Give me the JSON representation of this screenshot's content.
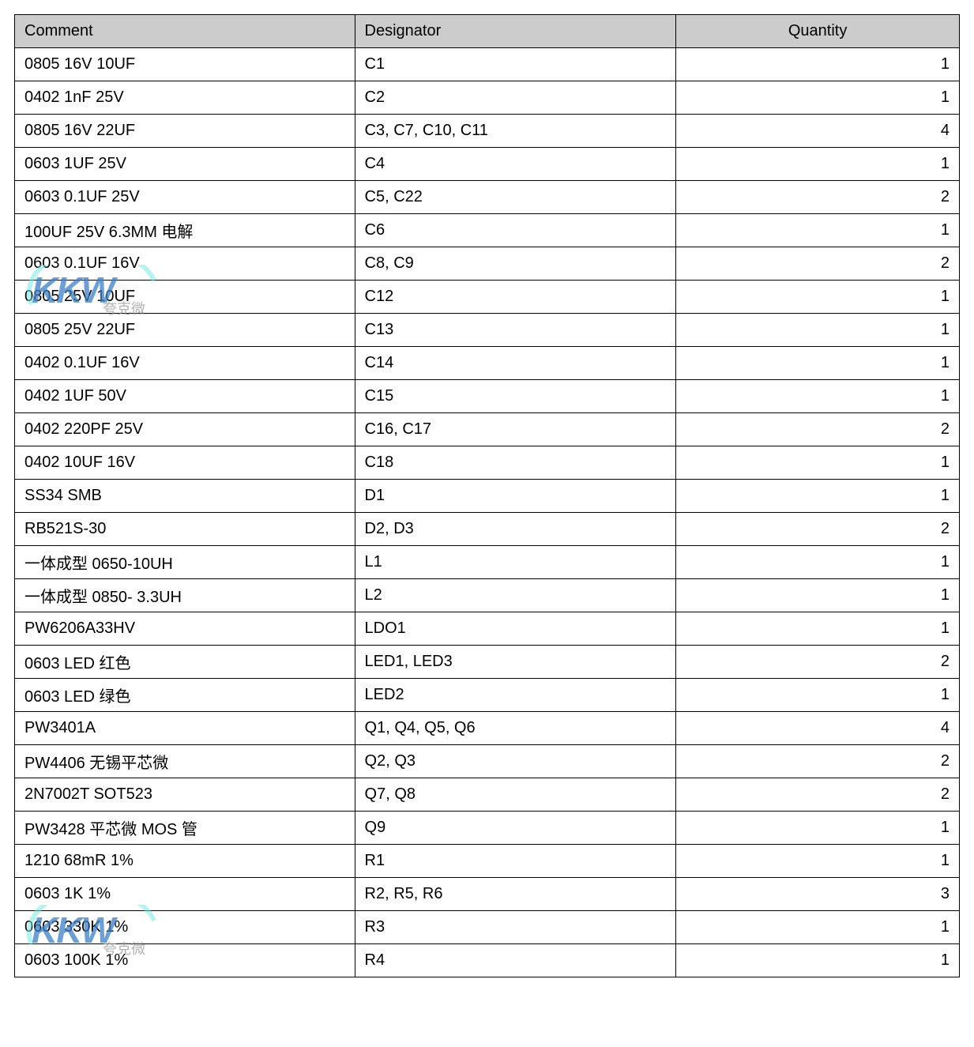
{
  "table": {
    "columns": [
      "Comment",
      "Designator",
      "Quantity"
    ],
    "header_bg": "#cccccc",
    "border_color": "#000000",
    "font_size": 20,
    "rows": [
      {
        "comment": "0805 16V   10UF",
        "designator": "C1",
        "quantity": "1"
      },
      {
        "comment": "0402 1nF   25V",
        "designator": "C2",
        "quantity": "1"
      },
      {
        "comment": "0805 16V   22UF",
        "designator": "C3, C7, C10, C11",
        "quantity": "4"
      },
      {
        "comment": "0603 1UF   25V",
        "designator": "C4",
        "quantity": "1"
      },
      {
        "comment": "0603 0.1UF   25V",
        "designator": "C5, C22",
        "quantity": "2"
      },
      {
        "comment": "100UF 25V   6.3MM 电解",
        "designator": "C6",
        "quantity": "1"
      },
      {
        "comment": "0603 0.1UF   16V",
        "designator": "C8, C9",
        "quantity": "2"
      },
      {
        "comment": "0805 25V   10UF",
        "designator": "C12",
        "quantity": "1"
      },
      {
        "comment": "0805 25V   22UF",
        "designator": "C13",
        "quantity": "1"
      },
      {
        "comment": "0402 0.1UF   16V",
        "designator": "C14",
        "quantity": "1"
      },
      {
        "comment": "0402 1UF   50V",
        "designator": "C15",
        "quantity": "1"
      },
      {
        "comment": "0402 220PF 25V",
        "designator": "C16, C17",
        "quantity": "2"
      },
      {
        "comment": "0402 10UF   16V",
        "designator": "C18",
        "quantity": "1"
      },
      {
        "comment": "SS34   SMB",
        "designator": "D1",
        "quantity": "1"
      },
      {
        "comment": "RB521S-30",
        "designator": "D2, D3",
        "quantity": "2"
      },
      {
        "comment": "一体成型 0650-10UH",
        "designator": "L1",
        "quantity": "1"
      },
      {
        "comment": "一体成型 0850- 3.3UH",
        "designator": "L2",
        "quantity": "1"
      },
      {
        "comment": "PW6206A33HV",
        "designator": "LDO1",
        "quantity": "1"
      },
      {
        "comment": "0603 LED  红色",
        "designator": "LED1, LED3",
        "quantity": "2"
      },
      {
        "comment": "0603 LED  绿色",
        "designator": "LED2",
        "quantity": "1"
      },
      {
        "comment": "PW3401A",
        "designator": "Q1, Q4, Q5, Q6",
        "quantity": "4"
      },
      {
        "comment": "PW4406 无锡平芯微",
        "designator": "Q2, Q3",
        "quantity": "2"
      },
      {
        "comment": "2N7002T SOT523",
        "designator": "Q7, Q8",
        "quantity": "2"
      },
      {
        "comment": "PW3428  平芯微 MOS 管",
        "designator": "Q9",
        "quantity": "1"
      },
      {
        "comment": "1210 68mR 1%",
        "designator": "R1",
        "quantity": "1"
      },
      {
        "comment": "0603 1K 1%",
        "designator": "R2, R5, R6",
        "quantity": "3"
      },
      {
        "comment": "0603 330K 1%",
        "designator": "R3",
        "quantity": "1"
      },
      {
        "comment": "0603 100K 1%",
        "designator": "R4",
        "quantity": "1"
      }
    ]
  },
  "watermark": {
    "brand": "KKW",
    "subtitle": "夸克微",
    "brand_color": "#3b7fc9",
    "arc_color": "#6fe8e0",
    "subtitle_color": "#999999"
  }
}
